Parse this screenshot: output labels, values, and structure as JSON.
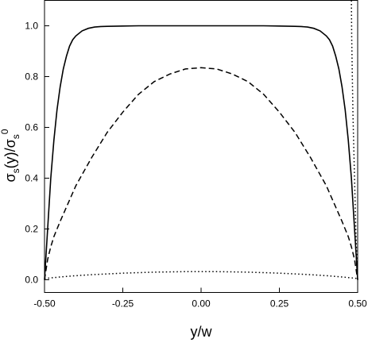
{
  "chart_data": {
    "type": "line",
    "xlabel": "y/w",
    "ylabel": "σs(y)/σs0",
    "ylabel_parts": {
      "sigma": "σ",
      "sub": "s",
      "mid": "(y)/",
      "sigma2": "σ",
      "sub2": "s",
      "sup2": "0"
    },
    "xlim": [
      -0.5,
      0.5
    ],
    "ylim": [
      -0.05,
      1.1
    ],
    "xticks": [
      -0.5,
      -0.25,
      0,
      0.25,
      0.5
    ],
    "xtick_labels": [
      "-0.50",
      "-0.25",
      "0.00",
      "0.25",
      "0.50"
    ],
    "yticks": [
      0,
      0.2,
      0.4,
      0.6,
      0.8,
      1.0
    ],
    "ytick_labels": [
      "0.0",
      "0.2",
      "0.4",
      "0.6",
      "0.8",
      "1.0"
    ],
    "grid": false,
    "legend": "none",
    "series": [
      {
        "style": "solid",
        "x": [
          -0.5,
          -0.495,
          -0.49,
          -0.48,
          -0.47,
          -0.46,
          -0.45,
          -0.44,
          -0.43,
          -0.42,
          -0.41,
          -0.4,
          -0.38,
          -0.36,
          -0.34,
          -0.32,
          -0.3,
          -0.25,
          -0.2,
          -0.1,
          0,
          0.1,
          0.2,
          0.25,
          0.3,
          0.32,
          0.34,
          0.36,
          0.38,
          0.4,
          0.41,
          0.42,
          0.43,
          0.44,
          0.45,
          0.46,
          0.47,
          0.48,
          0.49,
          0.495,
          0.5
        ],
        "y": [
          0.0,
          0.1,
          0.2,
          0.4,
          0.55,
          0.67,
          0.76,
          0.83,
          0.88,
          0.92,
          0.945,
          0.96,
          0.98,
          0.99,
          0.995,
          0.997,
          0.998,
          0.999,
          1.0,
          1.0,
          1.0,
          1.0,
          1.0,
          0.999,
          0.998,
          0.997,
          0.995,
          0.99,
          0.98,
          0.96,
          0.945,
          0.92,
          0.88,
          0.83,
          0.76,
          0.67,
          0.55,
          0.4,
          0.2,
          0.1,
          0.0
        ]
      },
      {
        "style": "dashed",
        "x": [
          -0.5,
          -0.49,
          -0.48,
          -0.47,
          -0.45,
          -0.4,
          -0.35,
          -0.3,
          -0.25,
          -0.2,
          -0.15,
          -0.1,
          -0.05,
          0,
          0.05,
          0.1,
          0.15,
          0.2,
          0.25,
          0.3,
          0.35,
          0.4,
          0.45,
          0.47,
          0.48,
          0.49,
          0.5
        ],
        "y": [
          0.0,
          0.08,
          0.13,
          0.17,
          0.23,
          0.37,
          0.48,
          0.58,
          0.66,
          0.73,
          0.78,
          0.81,
          0.83,
          0.835,
          0.83,
          0.81,
          0.78,
          0.73,
          0.66,
          0.58,
          0.48,
          0.37,
          0.23,
          0.17,
          0.13,
          0.08,
          0.0
        ]
      },
      {
        "style": "dotted",
        "x": [
          -0.5,
          -0.45,
          -0.4,
          -0.35,
          -0.3,
          -0.25,
          -0.2,
          -0.15,
          -0.1,
          -0.05,
          0,
          0.05,
          0.1,
          0.15,
          0.2,
          0.25,
          0.3,
          0.35,
          0.4,
          0.45,
          0.5
        ],
        "y": [
          0.005,
          0.011,
          0.016,
          0.02,
          0.023,
          0.026,
          0.028,
          0.03,
          0.031,
          0.032,
          0.032,
          0.032,
          0.031,
          0.03,
          0.028,
          0.026,
          0.023,
          0.02,
          0.016,
          0.011,
          0.005
        ]
      },
      {
        "style": "dotted",
        "x": [
          0.48,
          0.481,
          0.483,
          0.485,
          0.488,
          0.491,
          0.494,
          0.497,
          0.5
        ],
        "y": [
          1.1,
          0.95,
          0.8,
          0.65,
          0.5,
          0.35,
          0.2,
          0.09,
          0.0
        ]
      }
    ]
  }
}
